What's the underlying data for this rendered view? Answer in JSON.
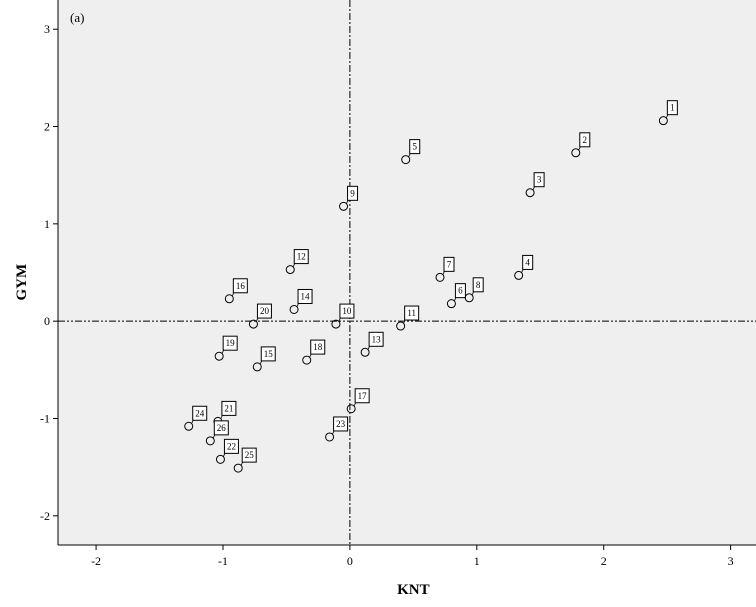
{
  "chart_data": {
    "type": "scatter",
    "panel_label": "(a)",
    "xlabel": "KNT",
    "ylabel": "GYM",
    "xlim": [
      -2.3,
      3.2
    ],
    "ylim": [
      -2.3,
      3.3
    ],
    "xticks": [
      -2,
      -1,
      0,
      1,
      2,
      3
    ],
    "yticks": [
      -2,
      -1,
      0,
      1,
      2,
      3
    ],
    "tick_labels_x": [
      "-2",
      "-1",
      "0",
      "1",
      "2",
      "3"
    ],
    "tick_labels_y": [
      "-2",
      "-1",
      "0",
      "1",
      "2",
      "3"
    ],
    "grid": false,
    "reference_lines": {
      "x": 0,
      "y": 0
    },
    "colors": {
      "plot_bg": "#efefef",
      "marker": "#000000",
      "axis": "#000000"
    },
    "points": [
      {
        "label": "1",
        "x": 2.47,
        "y": 2.06
      },
      {
        "label": "2",
        "x": 1.78,
        "y": 1.73
      },
      {
        "label": "3",
        "x": 1.42,
        "y": 1.32
      },
      {
        "label": "4",
        "x": 1.33,
        "y": 0.47
      },
      {
        "label": "5",
        "x": 0.44,
        "y": 1.66
      },
      {
        "label": "6",
        "x": 0.8,
        "y": 0.18
      },
      {
        "label": "7",
        "x": 0.71,
        "y": 0.45
      },
      {
        "label": "8",
        "x": 0.94,
        "y": 0.24
      },
      {
        "label": "9",
        "x": -0.05,
        "y": 1.18
      },
      {
        "label": "10",
        "x": -0.11,
        "y": -0.03
      },
      {
        "label": "11",
        "x": 0.4,
        "y": -0.05
      },
      {
        "label": "12",
        "x": -0.47,
        "y": 0.53
      },
      {
        "label": "13",
        "x": 0.12,
        "y": -0.32
      },
      {
        "label": "14",
        "x": -0.44,
        "y": 0.12
      },
      {
        "label": "15",
        "x": -0.73,
        "y": -0.47
      },
      {
        "label": "16",
        "x": -0.95,
        "y": 0.23
      },
      {
        "label": "17",
        "x": 0.01,
        "y": -0.9
      },
      {
        "label": "18",
        "x": -0.34,
        "y": -0.4
      },
      {
        "label": "19",
        "x": -1.03,
        "y": -0.36
      },
      {
        "label": "20",
        "x": -0.76,
        "y": -0.03
      },
      {
        "label": "21",
        "x": -1.04,
        "y": -1.03
      },
      {
        "label": "22",
        "x": -1.02,
        "y": -1.42
      },
      {
        "label": "23",
        "x": -0.16,
        "y": -1.19
      },
      {
        "label": "24",
        "x": -1.27,
        "y": -1.08
      },
      {
        "label": "25",
        "x": -0.88,
        "y": -1.51
      },
      {
        "label": "26",
        "x": -1.1,
        "y": -1.23
      }
    ]
  }
}
